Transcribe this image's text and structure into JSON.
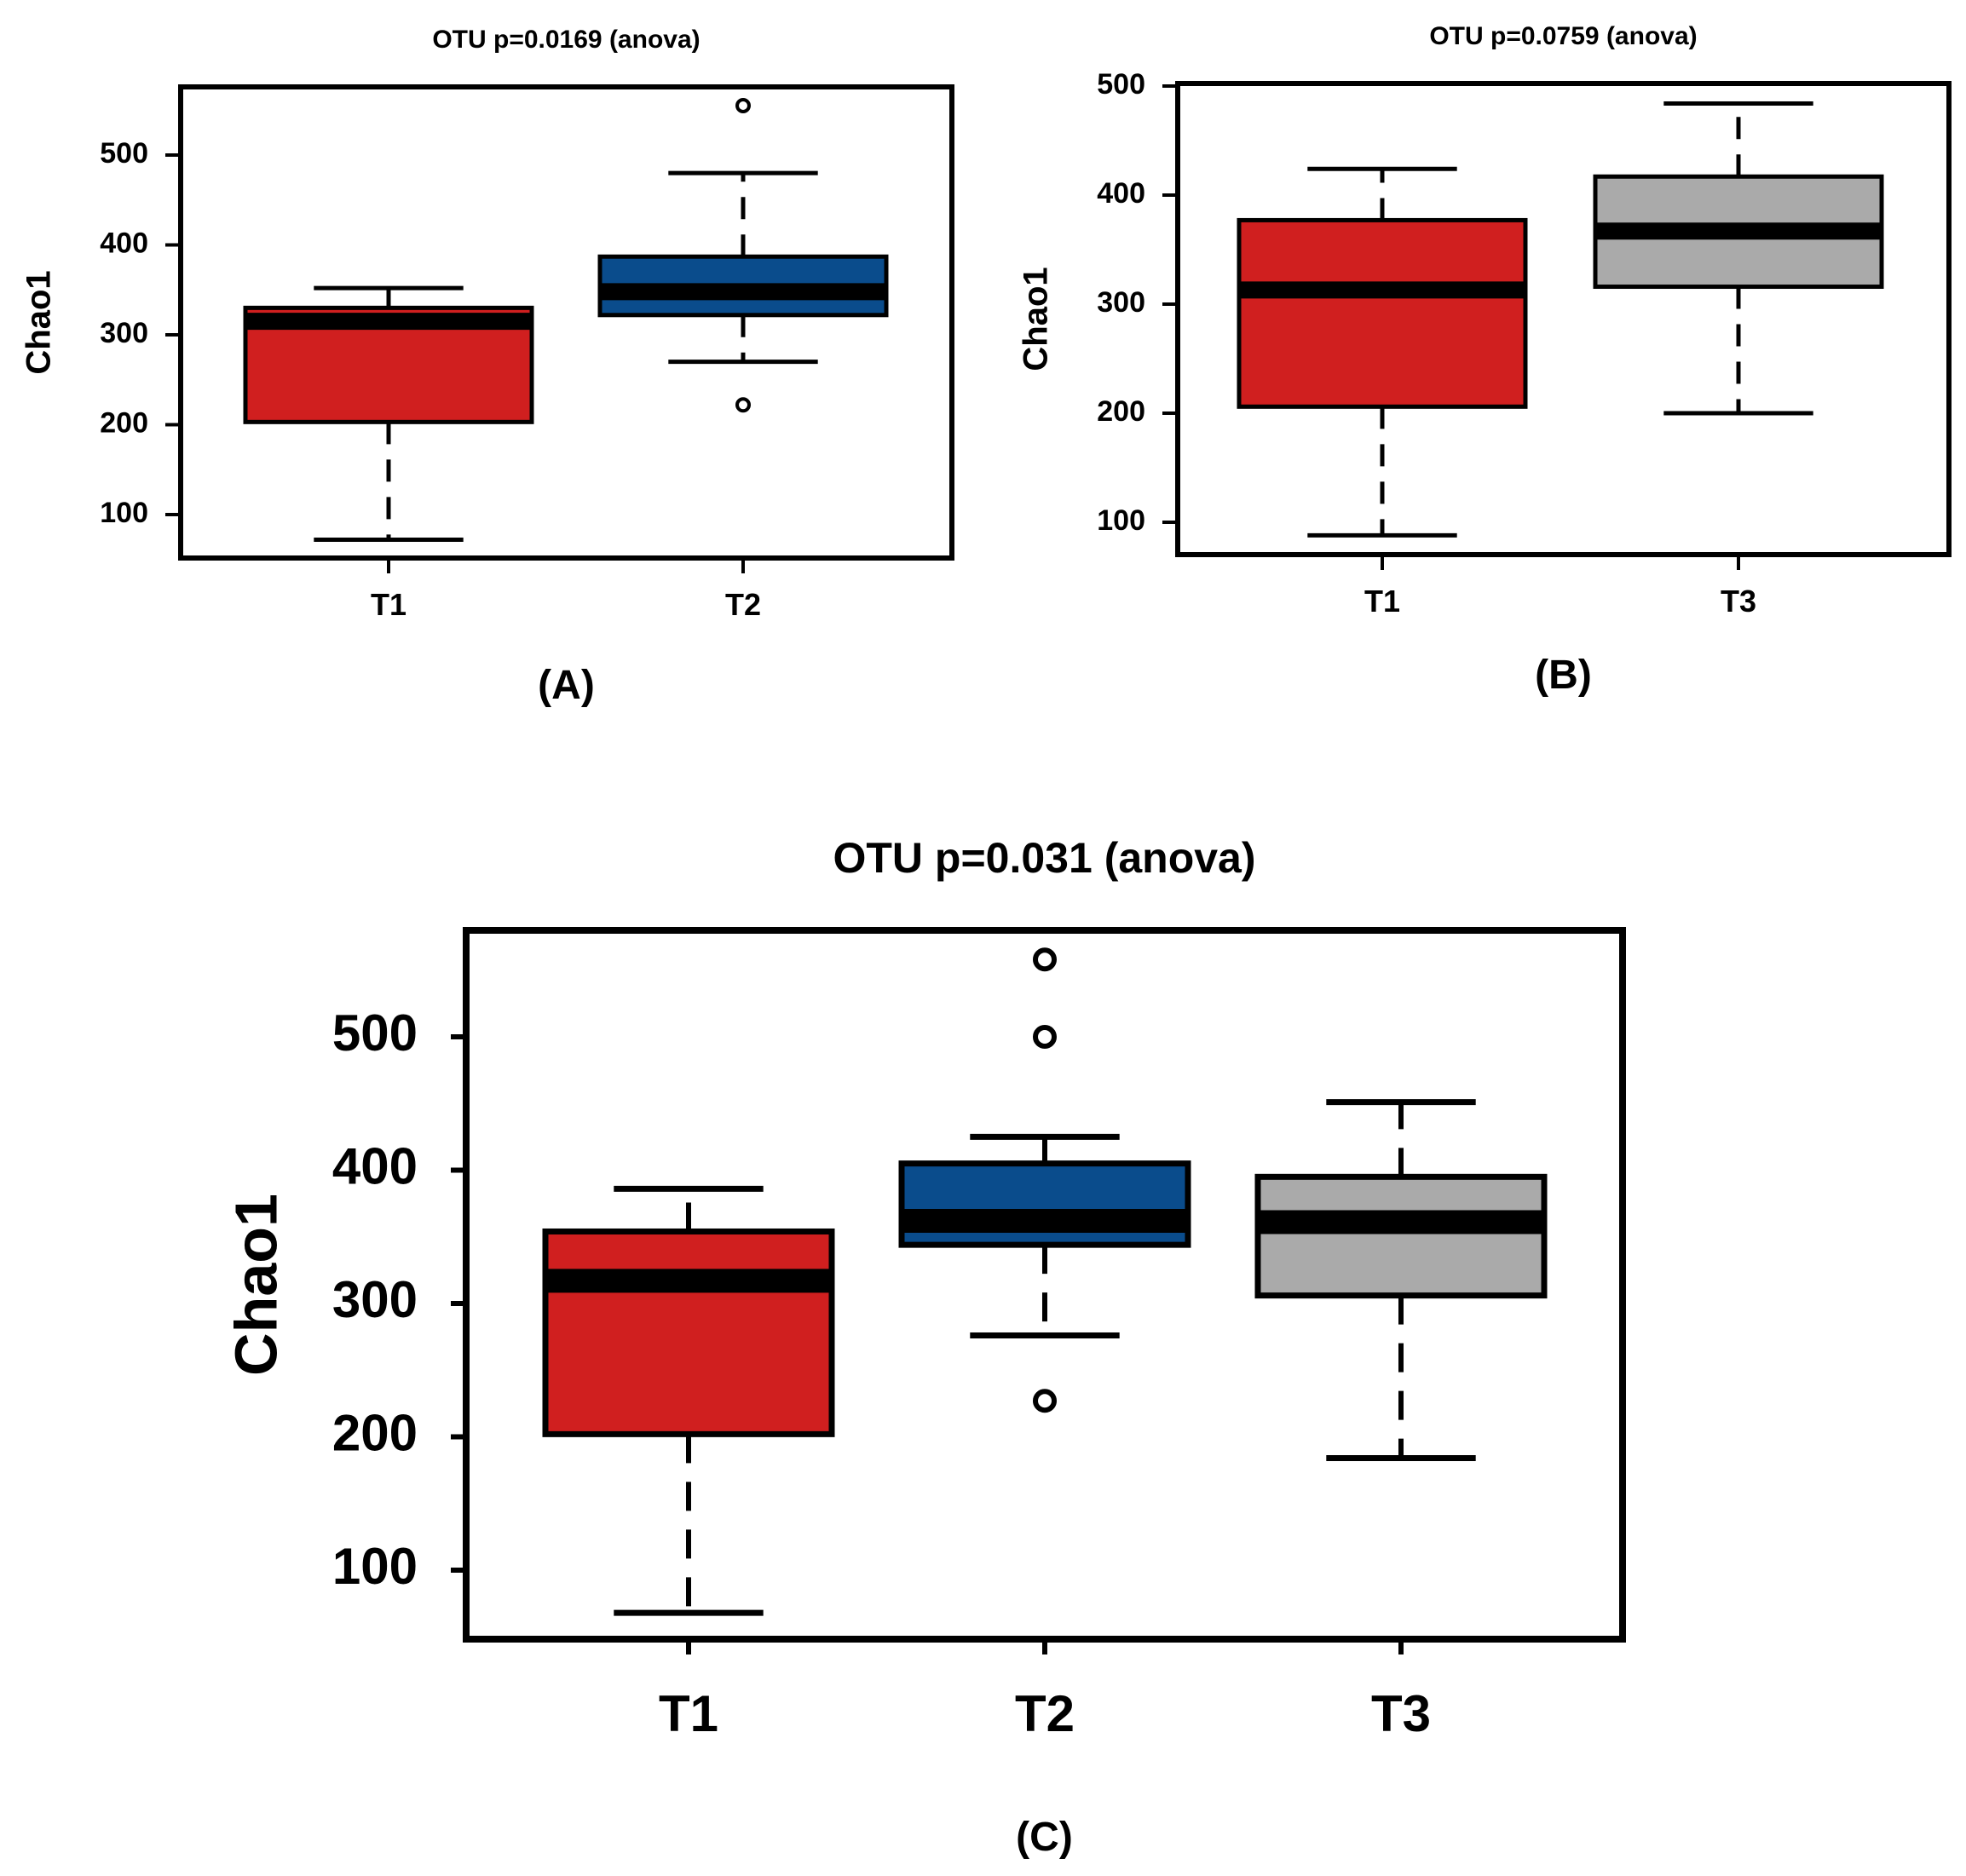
{
  "figure": {
    "captions": [
      "(A)",
      "(B)",
      "(C)"
    ]
  },
  "colors": {
    "T1": "#d01f1f",
    "T2": "#0a4c8c",
    "T3": "#aaaaaa",
    "median": "#000000",
    "frame": "#000000"
  },
  "chart_data": [
    {
      "type": "box",
      "panel": "A",
      "title": "OTU p=0.0169 (anova)",
      "xlabel": "",
      "ylabel": "Chao1",
      "ylim": [
        50,
        560
      ],
      "yticks": [
        100,
        200,
        300,
        400,
        500
      ],
      "grid": false,
      "categories": [
        "T1",
        "T2"
      ],
      "boxes": [
        {
          "group": "T1",
          "whisker_low": 72,
          "q1": 203,
          "median": 315,
          "q3": 330,
          "whisker_high": 352,
          "outliers": []
        },
        {
          "group": "T2",
          "whisker_low": 270,
          "q1": 322,
          "median": 348,
          "q3": 387,
          "whisker_high": 480,
          "outliers": [
            222,
            555
          ]
        }
      ]
    },
    {
      "type": "box",
      "panel": "B",
      "title": "OTU p=0.0759 (anova)",
      "xlabel": "",
      "ylabel": "Chao1",
      "ylim": [
        70,
        500
      ],
      "yticks": [
        100,
        200,
        300,
        400,
        500
      ],
      "grid": false,
      "categories": [
        "T1",
        "T3"
      ],
      "boxes": [
        {
          "group": "T1",
          "whisker_low": 88,
          "q1": 206,
          "median": 313,
          "q3": 377,
          "whisker_high": 424,
          "outliers": []
        },
        {
          "group": "T3",
          "whisker_low": 200,
          "q1": 316,
          "median": 367,
          "q3": 417,
          "whisker_high": 484,
          "outliers": []
        }
      ]
    },
    {
      "type": "box",
      "panel": "C",
      "title": "OTU p=0.031 (anova)",
      "xlabel": "",
      "ylabel": "Chao1",
      "ylim": [
        48,
        580
      ],
      "yticks": [
        100,
        200,
        300,
        400,
        500
      ],
      "grid": false,
      "categories": [
        "T1",
        "T2",
        "T3"
      ],
      "boxes": [
        {
          "group": "T1",
          "whisker_low": 68,
          "q1": 202,
          "median": 317,
          "q3": 354,
          "whisker_high": 386,
          "outliers": []
        },
        {
          "group": "T2",
          "whisker_low": 276,
          "q1": 344,
          "median": 362,
          "q3": 405,
          "whisker_high": 425,
          "outliers": [
            227,
            500,
            558
          ]
        },
        {
          "group": "T3",
          "whisker_low": 184,
          "q1": 306,
          "median": 361,
          "q3": 395,
          "whisker_high": 451,
          "outliers": []
        }
      ]
    }
  ]
}
